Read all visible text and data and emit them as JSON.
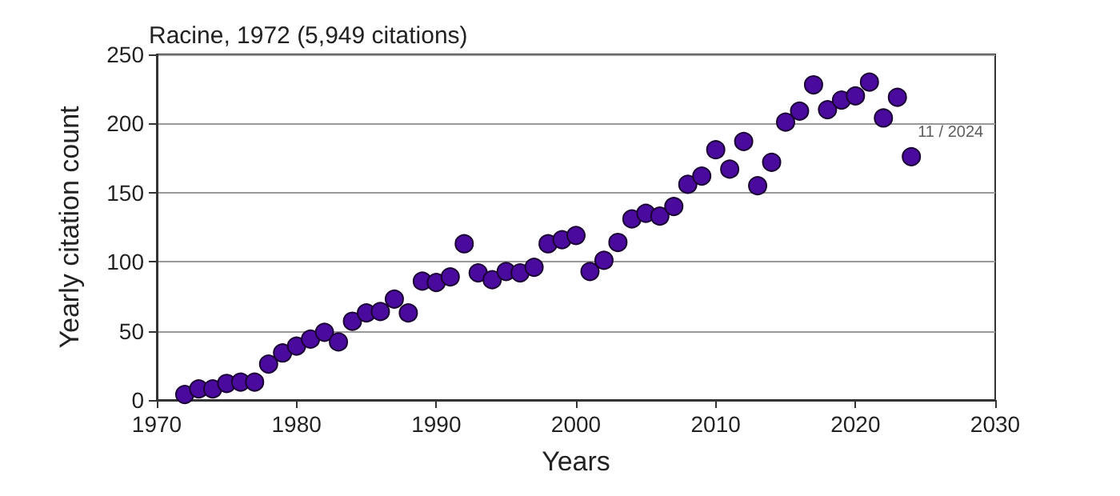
{
  "chart_data": {
    "type": "scatter",
    "title": "Racine, 1972 (5,949 citations)",
    "xlabel": "Years",
    "ylabel": "Yearly citation count",
    "x": [
      1972,
      1973,
      1974,
      1975,
      1976,
      1977,
      1978,
      1979,
      1980,
      1981,
      1982,
      1983,
      1984,
      1985,
      1986,
      1987,
      1988,
      1989,
      1990,
      1991,
      1992,
      1993,
      1994,
      1995,
      1996,
      1997,
      1998,
      1999,
      2000,
      2001,
      2002,
      2003,
      2004,
      2005,
      2006,
      2007,
      2008,
      2009,
      2010,
      2011,
      2012,
      2013,
      2014,
      2015,
      2016,
      2017,
      2018,
      2019,
      2020,
      2021,
      2022,
      2023,
      2024
    ],
    "series": [
      {
        "color": "#4b0a9e",
        "values": [
          4,
          8,
          8,
          12,
          13,
          13,
          26,
          34,
          39,
          44,
          49,
          42,
          57,
          63,
          64,
          73,
          63,
          86,
          85,
          89,
          113,
          92,
          87,
          93,
          92,
          96,
          113,
          116,
          119,
          93,
          101,
          114,
          131,
          135,
          133,
          140,
          156,
          162,
          181,
          167,
          187,
          155,
          172,
          201,
          209,
          228,
          210,
          217,
          220,
          230,
          204,
          219,
          176
        ]
      }
    ],
    "xlim": [
      1970,
      2030
    ],
    "xticks": [
      1970,
      1980,
      1990,
      2000,
      2010,
      2020,
      2030
    ],
    "ylim": [
      0,
      250
    ],
    "yticks": [
      0,
      50,
      100,
      150,
      200,
      250
    ],
    "grid": "y",
    "marker": "circle",
    "annotations": [
      {
        "text": "11 / 2024",
        "x": 2024,
        "y": 176
      }
    ]
  }
}
